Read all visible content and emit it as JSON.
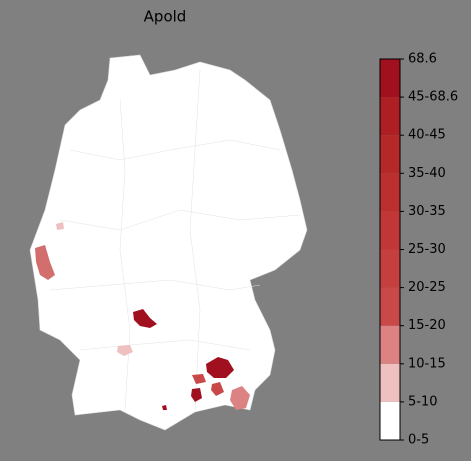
{
  "title": "Apold",
  "colorbar": {
    "ticks": [
      "0-5",
      "5-10",
      "10-15",
      "15-20",
      "20-25",
      "25-30",
      "30-35",
      "35-40",
      "40-45",
      "45-68.6",
      "68.6"
    ],
    "colors": [
      "#ffffff",
      "#efc0c0",
      "#dc8282",
      "#c94848",
      "#c53f3f",
      "#c13737",
      "#bc2f2f",
      "#b52828",
      "#ad1f23",
      "#a0101e"
    ]
  }
}
